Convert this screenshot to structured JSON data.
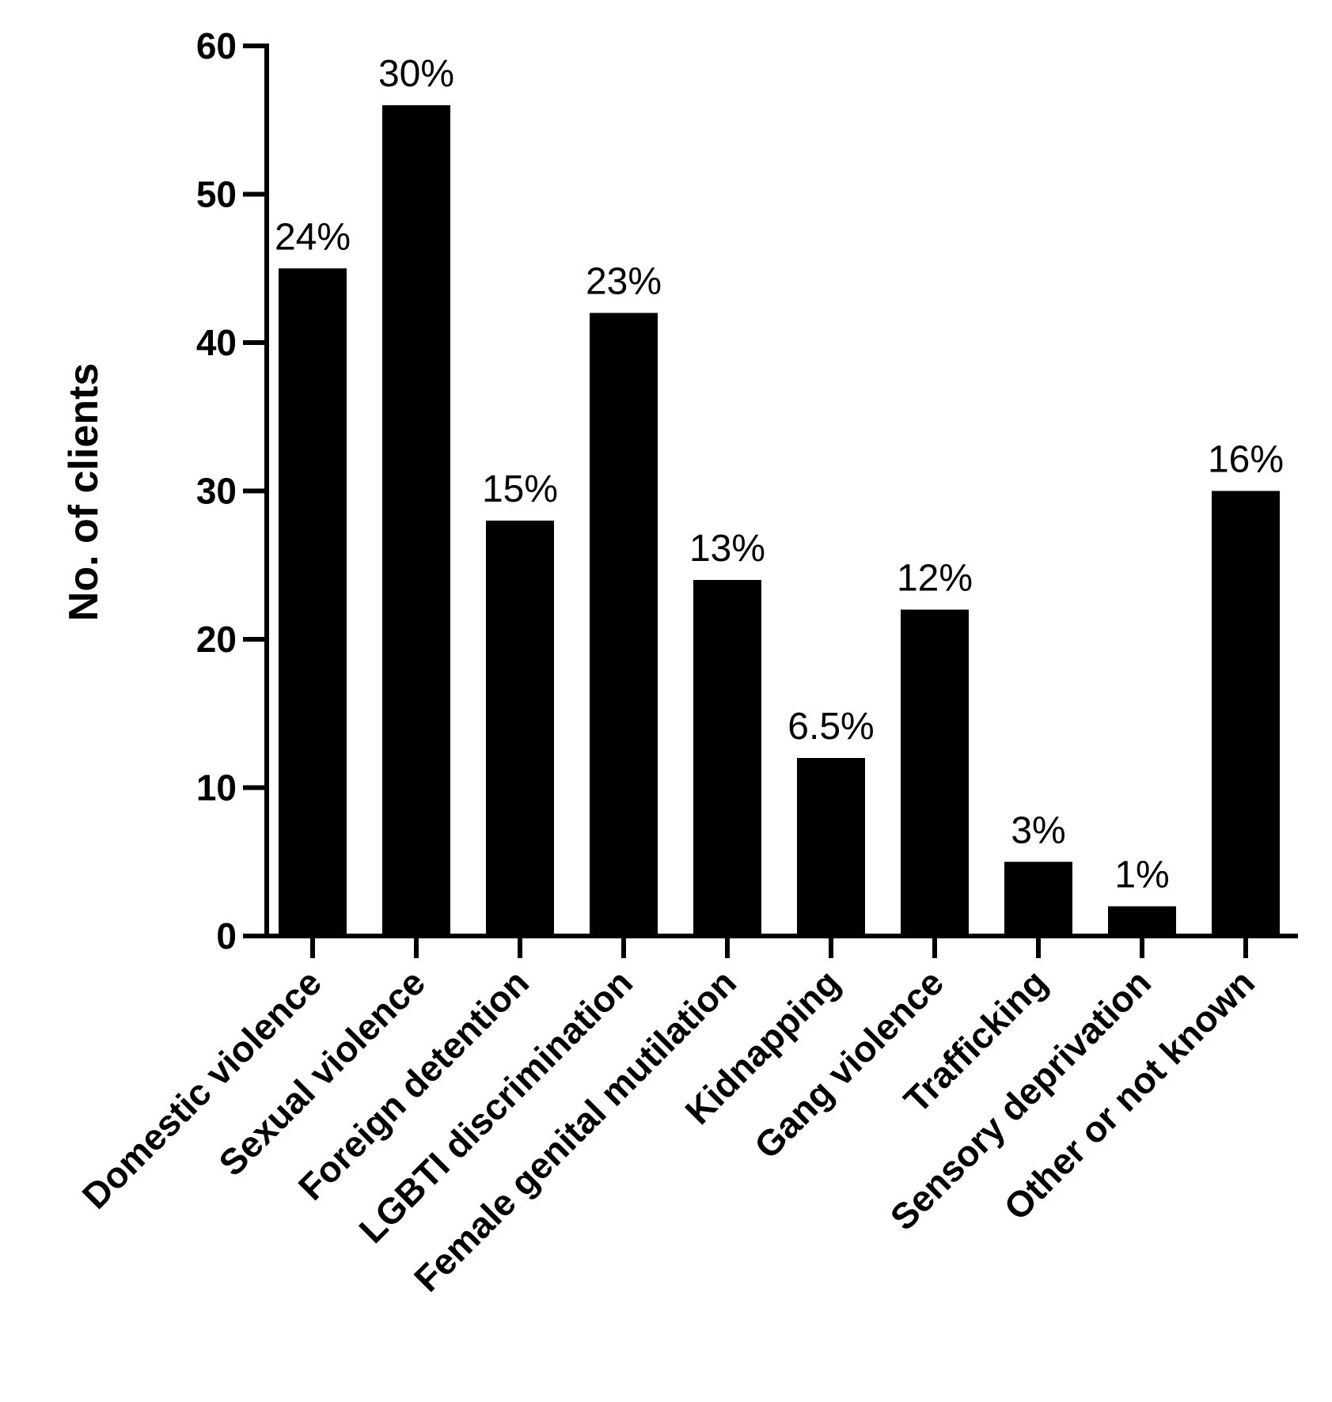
{
  "chart_data": {
    "type": "bar",
    "ylabel": "No. of clients",
    "xlabel": "",
    "title": "",
    "ylim": [
      0,
      60
    ],
    "yticks": [
      0,
      10,
      20,
      30,
      40,
      50,
      60
    ],
    "grid": false,
    "legend": "none",
    "bar_color": "#000000",
    "categories": [
      "Domestic violence",
      "Sexual violence",
      "Foreign detention",
      "LGBTI discrimination",
      "Female genital mutilation",
      "Kidnapping",
      "Gang violence",
      "Trafficking",
      "Sensory deprivation",
      "Other or not known"
    ],
    "values": [
      45,
      56,
      28,
      42,
      24,
      12,
      22,
      5,
      2,
      30
    ],
    "data_labels": [
      "24%",
      "30%",
      "15%",
      "23%",
      "13%",
      "6.5%",
      "12%",
      "3%",
      "1%",
      "16%"
    ]
  }
}
